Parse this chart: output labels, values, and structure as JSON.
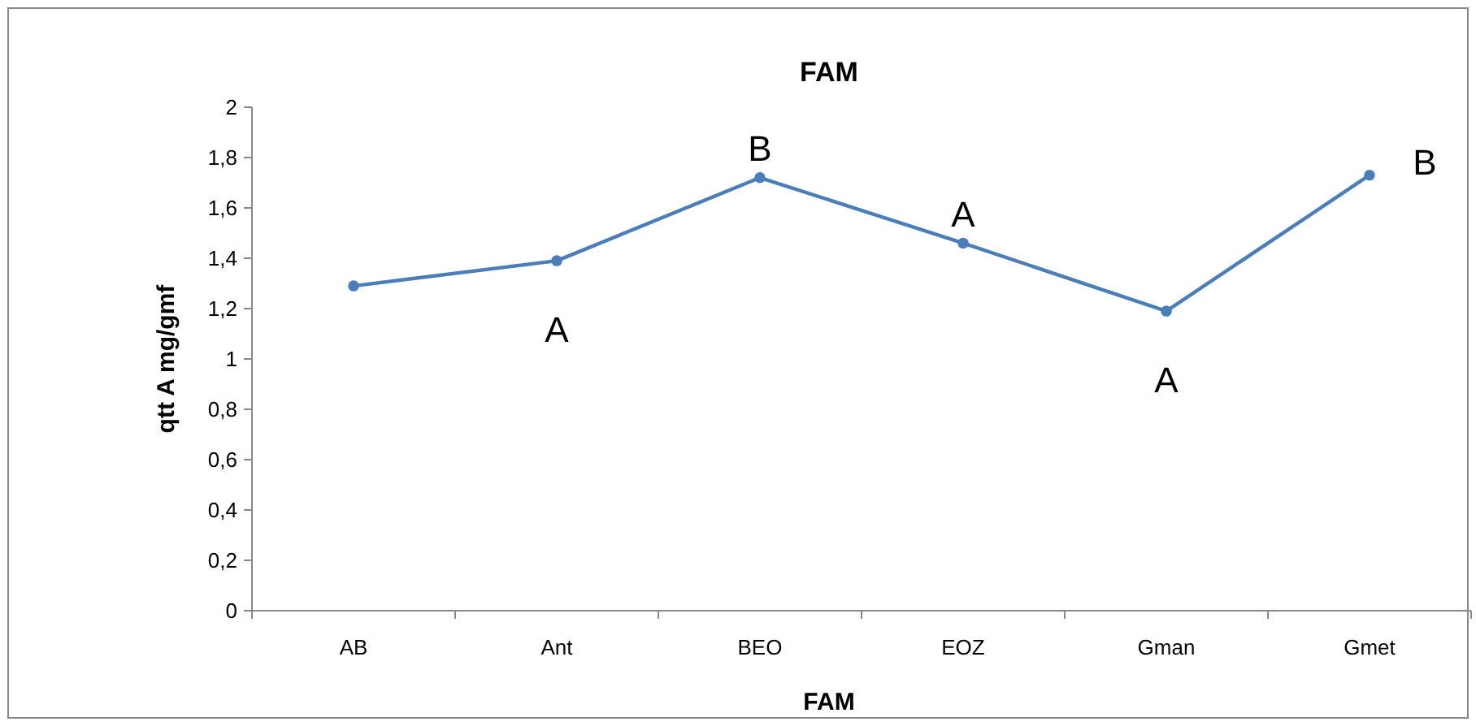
{
  "chart_data": {
    "type": "line",
    "title": "FAM",
    "xlabel": "FAM",
    "ylabel": "qtt A mg/gmf",
    "categories": [
      "AB",
      "Ant",
      "BEO",
      "EOZ",
      "Gman",
      "Gmet"
    ],
    "series": [
      {
        "color": "#4a7ebb",
        "values": [
          1.29,
          1.39,
          1.72,
          1.46,
          1.19,
          1.73
        ],
        "value_labels": [
          null,
          "A",
          "B",
          "A",
          "A",
          "B"
        ]
      }
    ],
    "ylim": [
      0,
      2
    ],
    "yticks": [
      0,
      {
        "value": 0.2,
        "label": "0,2"
      },
      {
        "value": 0.4,
        "label": "0,4"
      },
      {
        "value": 0.6,
        "label": "0,6"
      },
      {
        "value": 0.8,
        "label": "0,8"
      },
      1,
      {
        "value": 1.2,
        "label": "1,2"
      },
      {
        "value": 1.4,
        "label": "1,4"
      },
      {
        "value": 1.6,
        "label": "1,6"
      },
      {
        "value": 1.8,
        "label": "1,8"
      },
      2
    ],
    "marker": "circle",
    "grid": false
  }
}
